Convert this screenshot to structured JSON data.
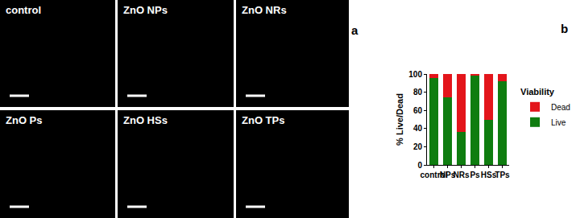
{
  "figure": {
    "panel_labels": [
      "a",
      "b"
    ],
    "images": [
      "control",
      "ZnO NPs",
      "ZnO NRs",
      "ZnO Ps",
      "ZnO HSs",
      "ZnO TPs"
    ]
  },
  "chart_data": {
    "type": "bar",
    "stacked": true,
    "categories": [
      "control",
      "NPs",
      "NRs",
      "Ps",
      "HSs",
      "TPs"
    ],
    "series": [
      {
        "name": "Live",
        "color": "#0f7d10",
        "values": [
          96,
          74,
          36,
          98,
          50,
          92
        ]
      },
      {
        "name": "Dead",
        "color": "#e3151b",
        "values": [
          4,
          26,
          64,
          2,
          50,
          8
        ]
      }
    ],
    "ylabel": "% Live/Dead",
    "legend_title": "Viability",
    "ylim": [
      0,
      100
    ],
    "yticks": [
      0,
      20,
      40,
      60,
      80,
      100
    ],
    "legend": "right",
    "grid": false
  }
}
